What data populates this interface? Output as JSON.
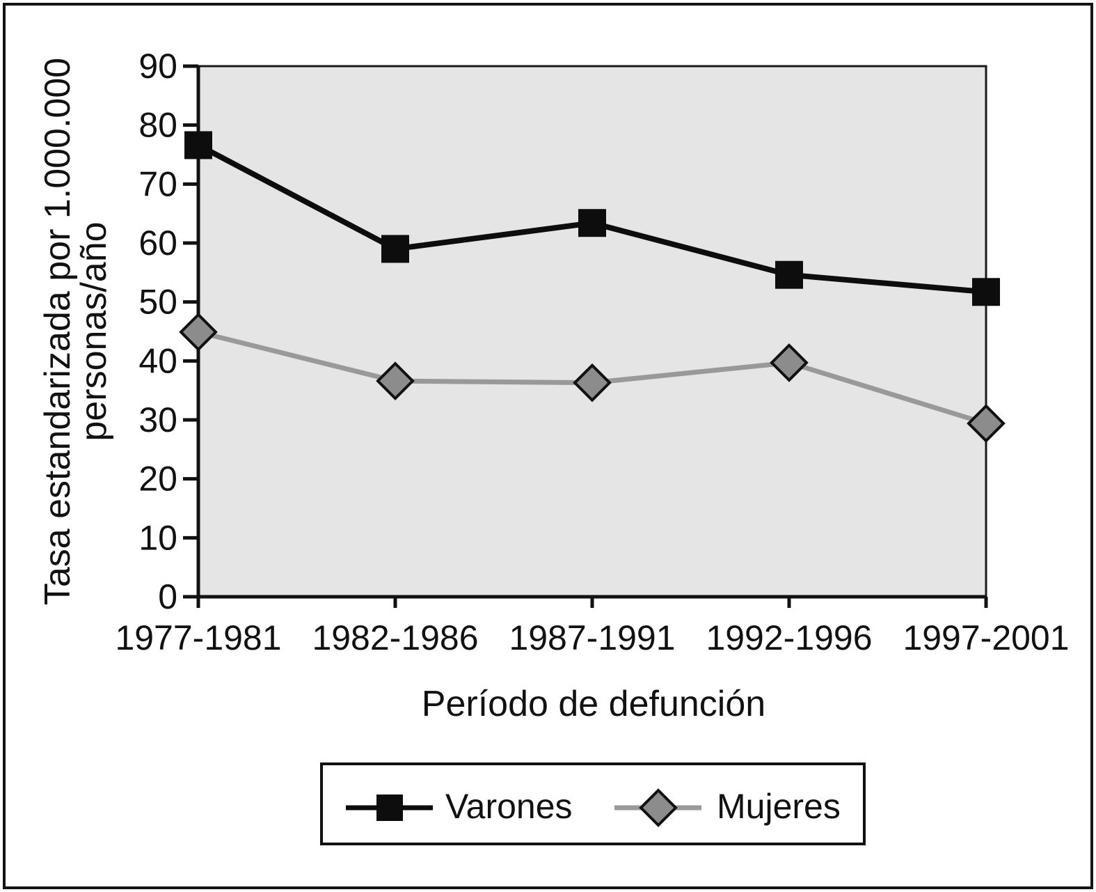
{
  "chart_data": {
    "type": "line",
    "title": "",
    "xlabel": "Período de defunción",
    "ylabel": "Tasa estandarizada por 1.000.000 personas/año",
    "ylabel_lines": [
      "Tasa estandarizada por 1.000.000",
      "personas/año"
    ],
    "categories": [
      "1977-1981",
      "1982-1986",
      "1987-1991",
      "1992-1996",
      "1997-2001"
    ],
    "series": [
      {
        "name": "Varones",
        "marker": "square",
        "line_color": "#0d0d0d",
        "marker_fill": "#0d0d0d",
        "marker_stroke": "#0d0d0d",
        "values": [
          76.6,
          59.0,
          63.4,
          54.6,
          51.7
        ]
      },
      {
        "name": "Mujeres",
        "marker": "diamond",
        "line_color": "#999999",
        "marker_fill": "#8c8c8c",
        "marker_stroke": "#111111",
        "values": [
          44.9,
          36.6,
          36.3,
          39.7,
          29.4
        ]
      }
    ],
    "ylim": [
      0,
      90
    ],
    "yticks": [
      0,
      10,
      20,
      30,
      40,
      50,
      60,
      70,
      80,
      90
    ],
    "grid": false,
    "plot_background": "#e5e5e5",
    "frame_color": "#141414",
    "legend": {
      "position": "bottom-center",
      "entries": [
        "Varones",
        "Mujeres"
      ]
    }
  }
}
